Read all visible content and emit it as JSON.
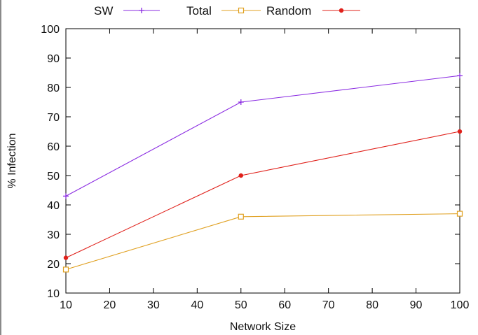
{
  "chart_data": {
    "type": "line",
    "title": "",
    "xlabel": "Network Size",
    "ylabel": "% Infection",
    "xlim": [
      10,
      100
    ],
    "ylim": [
      10,
      100
    ],
    "xticks": [
      10,
      20,
      30,
      40,
      50,
      60,
      70,
      80,
      90,
      100
    ],
    "yticks": [
      10,
      20,
      30,
      40,
      50,
      60,
      70,
      80,
      90,
      100
    ],
    "grid": false,
    "legend_position": "top",
    "series": [
      {
        "name": "SW",
        "color": "#8a2be2",
        "marker": "plus",
        "x": [
          10,
          50,
          100
        ],
        "y": [
          43,
          75,
          84
        ]
      },
      {
        "name": "Total",
        "color": "#e0a020",
        "marker": "open-square",
        "x": [
          10,
          50,
          100
        ],
        "y": [
          18,
          36,
          37
        ]
      },
      {
        "name": "Random",
        "color": "#e0201a",
        "marker": "filled-circle",
        "x": [
          10,
          50,
          100
        ],
        "y": [
          22,
          50,
          65
        ]
      }
    ]
  }
}
